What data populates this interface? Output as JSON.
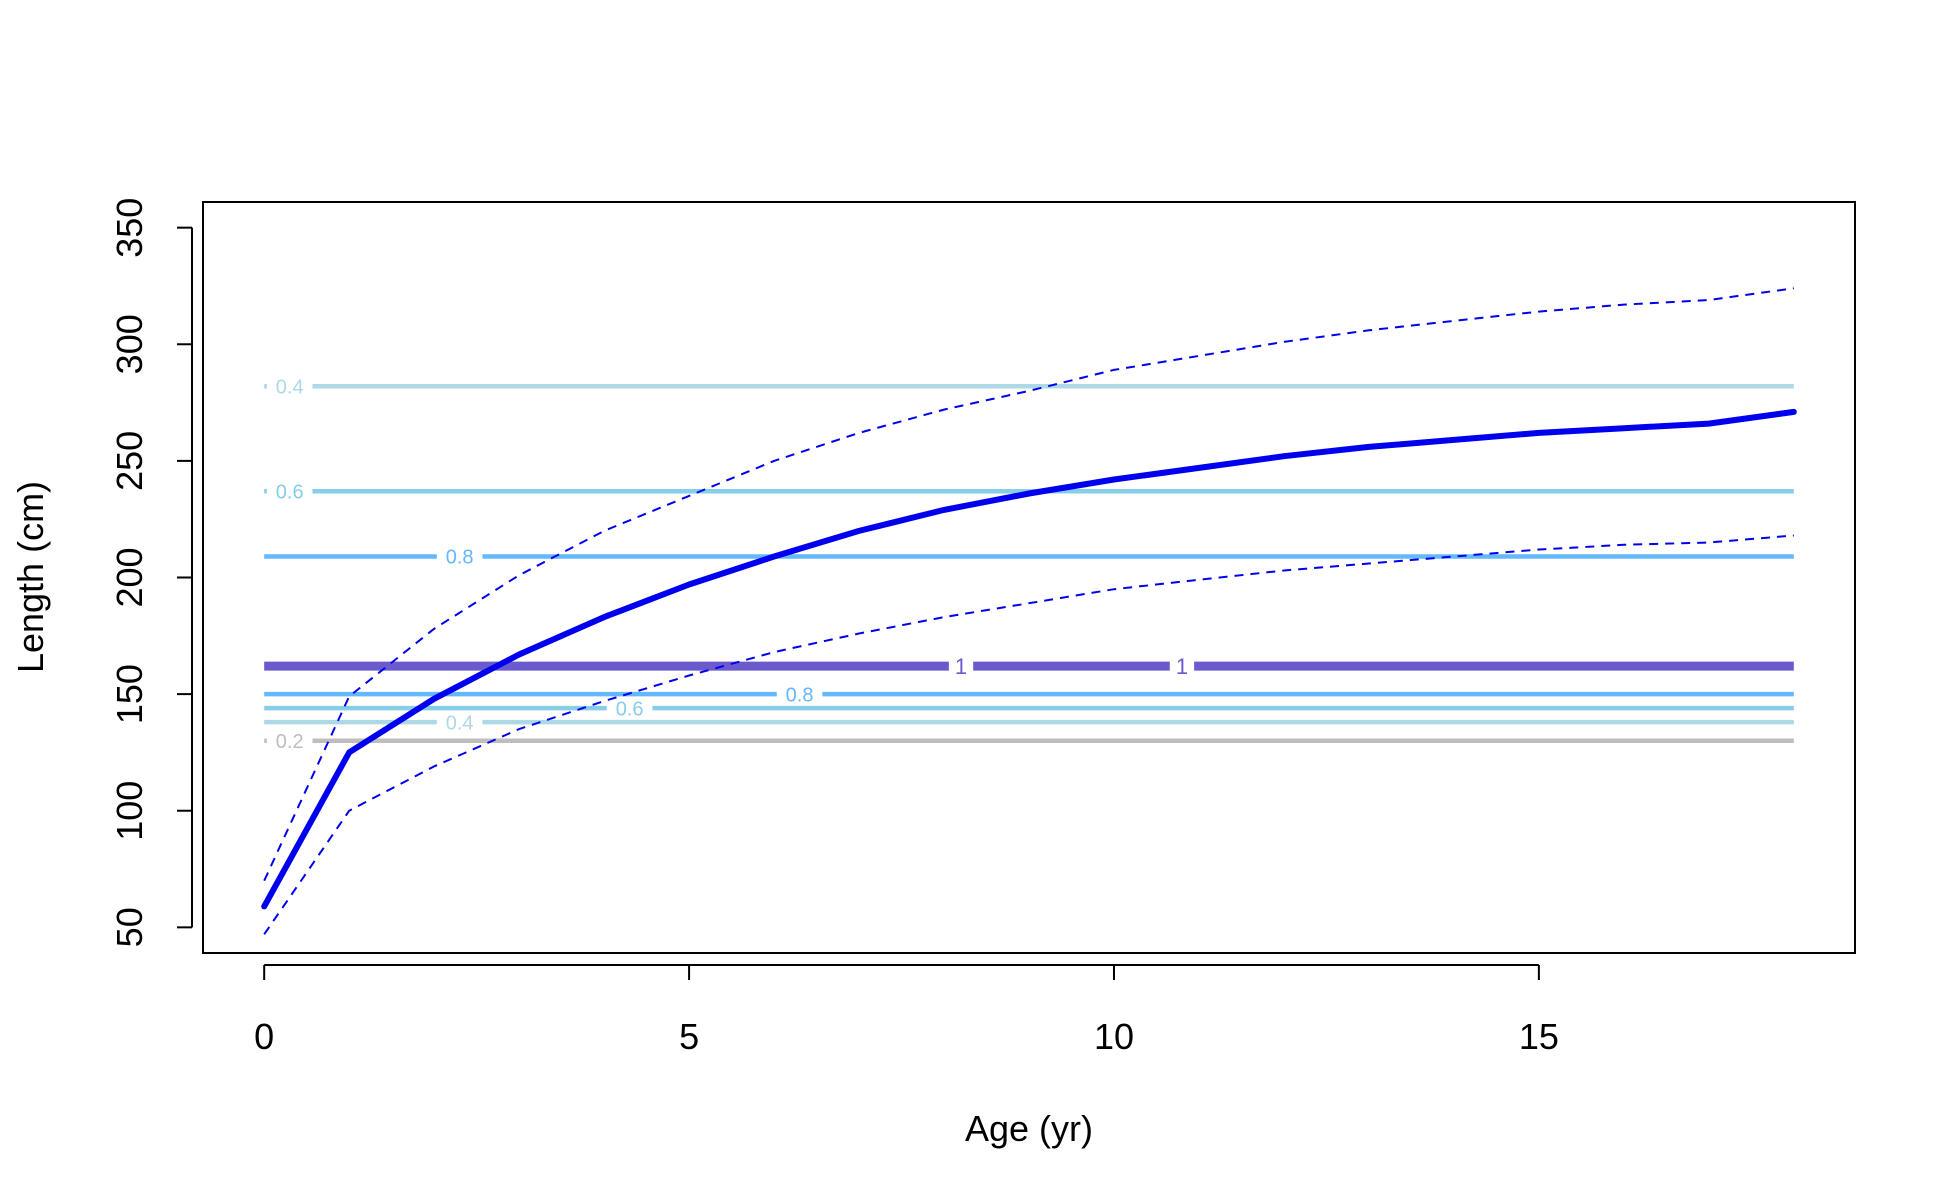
{
  "chart_data": {
    "type": "line",
    "title": "",
    "xlabel": "Age (yr)",
    "ylabel": "Length (cm)",
    "xlim": [
      -0.72,
      18.72
    ],
    "ylim": [
      39,
      361
    ],
    "xticks": [
      0,
      5,
      10,
      15
    ],
    "yticks": [
      50,
      100,
      150,
      200,
      250,
      300,
      350
    ],
    "grid": false,
    "legend": "none",
    "series": [
      {
        "role": "mean",
        "color": "#0000ee",
        "style": "solid-thick",
        "x": [
          0,
          1,
          2,
          3,
          4,
          5,
          6,
          7,
          8,
          9,
          10,
          11,
          12,
          13,
          14,
          15,
          16,
          17,
          18
        ],
        "y": [
          59,
          125,
          148,
          167,
          183,
          197,
          209,
          220,
          229,
          236,
          242,
          247,
          252,
          256,
          259,
          262,
          264,
          266,
          271
        ]
      },
      {
        "role": "upper",
        "color": "#0000ee",
        "style": "dashed",
        "x": [
          0,
          1,
          2,
          3,
          4,
          5,
          6,
          7,
          8,
          9,
          10,
          11,
          12,
          13,
          14,
          15,
          16,
          17,
          18
        ],
        "y": [
          70,
          149,
          178,
          201,
          220,
          235,
          250,
          262,
          272,
          280,
          289,
          295,
          301,
          306,
          310,
          314,
          317,
          319,
          324
        ]
      },
      {
        "role": "lower",
        "color": "#0000ee",
        "style": "dashed",
        "x": [
          0,
          1,
          2,
          3,
          4,
          5,
          6,
          7,
          8,
          9,
          10,
          11,
          12,
          13,
          14,
          15,
          16,
          17,
          18
        ],
        "y": [
          47,
          100,
          119,
          135,
          147,
          158,
          168,
          176,
          183,
          189,
          195,
          199,
          203,
          206,
          209,
          212,
          214,
          215,
          218
        ]
      }
    ],
    "contours": [
      {
        "y": 282,
        "label": "0.4",
        "color": "#add8e6",
        "label_x": [
          0.3
        ]
      },
      {
        "y": 237,
        "label": "0.6",
        "color": "#87ceeb",
        "label_x": [
          0.3
        ]
      },
      {
        "y": 209,
        "label": "0.8",
        "color": "#63b8ff",
        "label_x": [
          2.3
        ]
      },
      {
        "y": 162,
        "label": "1",
        "color": "#6a5acd",
        "label_x": [
          8.2,
          10.8
        ],
        "heavy": true
      },
      {
        "y": 150,
        "label": "0.8",
        "color": "#63b8ff",
        "label_x": [
          6.3
        ]
      },
      {
        "y": 144,
        "label": "0.6",
        "color": "#87ceeb",
        "label_x": [
          4.3
        ]
      },
      {
        "y": 138,
        "label": "0.4",
        "color": "#add8e6",
        "label_x": [
          2.3
        ]
      },
      {
        "y": 130,
        "label": "0.2",
        "color": "#bebebe",
        "label_x": [
          0.3
        ]
      }
    ]
  }
}
